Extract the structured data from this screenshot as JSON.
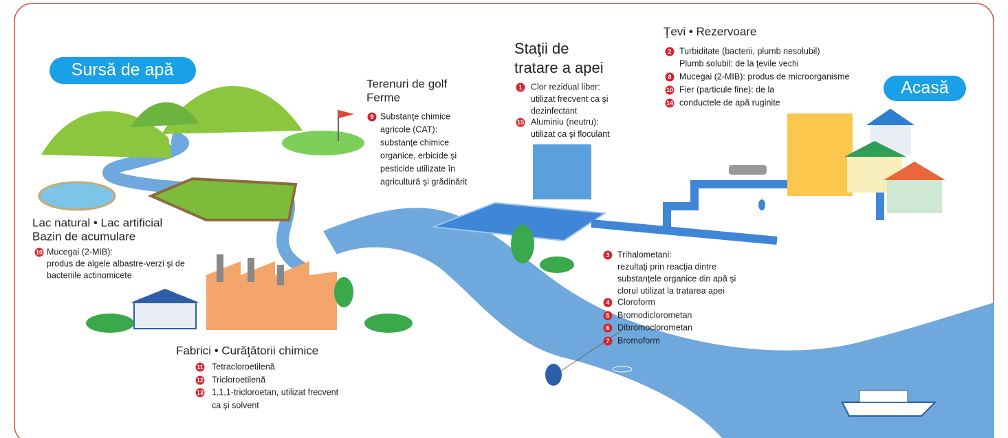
{
  "labels": {
    "source": "Sursă de apă",
    "home": "Acasă"
  },
  "sections": [
    {
      "title": [
        "Lac natural • Lac artificial",
        "Bazin de acumulare"
      ],
      "items": [
        {
          "badge": "10",
          "lines": [
            "Mucegai (2-MIB):",
            "produs de algele albastre-verzi şi de",
            "bacteriile actinomicete"
          ]
        }
      ]
    },
    {
      "title": [
        "Terenuri de golf",
        "Ferme"
      ],
      "items": [
        {
          "badge": "9",
          "lines": [
            "Substanţe chimice",
            "agricole (CAT):",
            "substanţe chimice",
            "organice, erbicide şi",
            "pesticide utilizate în",
            "agricultură şi grădinărit"
          ]
        }
      ]
    },
    {
      "title": [
        "Staţii de",
        "tratare a apei"
      ],
      "items": [
        {
          "badge": "1",
          "lines": [
            "Clor rezidual liber:",
            "utilizat frecvent ca şi",
            "dezinfectant"
          ]
        },
        {
          "badge": "15",
          "lines": [
            "Aluminiu (neutru):",
            "utilizat ca şi floculant"
          ]
        }
      ]
    },
    {
      "title": [
        "Ţevi • Rezervoare"
      ],
      "items": [
        {
          "badge": "2",
          "lines": [
            "Turbiditate (bacterii, plumb nesolubil)",
            "Plumb solubil: de la ţevile vechi"
          ]
        },
        {
          "badge": "8",
          "lines": [
            "Mucegai (2-MIB): produs de microorganisme"
          ]
        },
        {
          "badge": "10",
          "lines": [
            "Fier (particule fine): de la"
          ]
        },
        {
          "badge": "14",
          "lines": [
            "conductele de apă ruginite"
          ]
        }
      ]
    },
    {
      "title": [],
      "items": [
        {
          "badge": "3",
          "lines": [
            "Trihalometani:",
            "rezultaţi prin reacţia dintre",
            "substanţele organice din apă şi",
            "clorul utilizat la tratarea apei"
          ]
        },
        {
          "badge": "4",
          "lines": [
            "Cloroform"
          ]
        },
        {
          "badge": "5",
          "lines": [
            "Bromodiclorometan"
          ]
        },
        {
          "badge": "6",
          "lines": [
            "Dibromoclorometan"
          ]
        },
        {
          "badge": "7",
          "lines": [
            "Bromoform"
          ]
        }
      ]
    },
    {
      "title": [
        "Fabrici • Curăţătorii chimice"
      ],
      "items": [
        {
          "badge": "11",
          "lines": [
            "Tetracloroetilenă"
          ]
        },
        {
          "badge": "12",
          "lines": [
            "Tricloroetilenă"
          ]
        },
        {
          "badge": "13",
          "lines": [
            "1,1,1-tricloroetan, utilizat frecvent",
            "ca şi solvent"
          ]
        }
      ]
    }
  ]
}
